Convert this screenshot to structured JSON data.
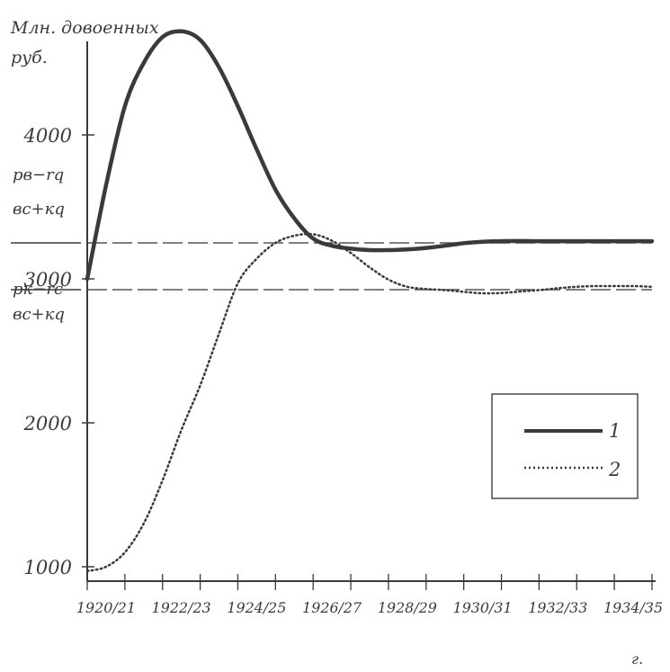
{
  "chart_data": {
    "type": "line",
    "ylabel_line1": "Млн. довоенных",
    "ylabel_line2": "руб.",
    "x_unit": "г.",
    "ylim": [
      900,
      4750
    ],
    "y_ticks": [
      {
        "value": 1000,
        "label": "1000"
      },
      {
        "value": 2000,
        "label": "2000"
      },
      {
        "value": 3000,
        "label": "3000"
      },
      {
        "value": 4000,
        "label": "4000"
      }
    ],
    "x_ticks": [
      "1920/21",
      "1922/23",
      "1924/25",
      "1926/27",
      "1928/29",
      "1930/31",
      "1932/33",
      "1934/35"
    ],
    "x_minor_ticks": [
      1920,
      1921,
      1922,
      1923,
      1924,
      1925,
      1926,
      1927,
      1928,
      1929,
      1930,
      1931,
      1932,
      1933,
      1934,
      1935
    ],
    "reference_lines": [
      {
        "value": 3250,
        "numerator": "pв−rq",
        "denominator": "вc+кq"
      },
      {
        "value": 2925,
        "numerator": "pк−rc",
        "denominator": "вc+кq"
      }
    ],
    "series": [
      {
        "name": "1",
        "style": "solid",
        "color": "#3a3a3a",
        "x": [
          1920,
          1920.5,
          1921,
          1921.5,
          1922,
          1922.5,
          1923,
          1923.5,
          1924,
          1924.5,
          1925,
          1925.5,
          1926,
          1926.5,
          1927,
          1927.5,
          1928,
          1928.5,
          1929,
          1929.5,
          1930,
          1930.5,
          1931,
          1931.5,
          1932,
          1932.5,
          1933,
          1933.5,
          1934,
          1934.5,
          1935
        ],
        "values": [
          3000,
          3650,
          4200,
          4500,
          4680,
          4720,
          4660,
          4470,
          4200,
          3900,
          3620,
          3420,
          3280,
          3230,
          3210,
          3200,
          3200,
          3205,
          3215,
          3230,
          3248,
          3258,
          3262,
          3263,
          3262,
          3262,
          3262,
          3262,
          3262,
          3262,
          3262
        ]
      },
      {
        "name": "2",
        "style": "dotted",
        "color": "#3a3a3a",
        "x": [
          1920,
          1920.5,
          1921,
          1921.5,
          1922,
          1922.5,
          1923,
          1923.5,
          1924,
          1924.5,
          1925,
          1925.5,
          1926,
          1926.5,
          1927,
          1927.5,
          1928,
          1928.5,
          1929,
          1929.5,
          1930,
          1930.5,
          1931,
          1931.5,
          1932,
          1932.5,
          1933,
          1933.5,
          1934,
          1934.5,
          1935
        ],
        "values": [
          970,
          1000,
          1100,
          1300,
          1600,
          1950,
          2260,
          2620,
          2970,
          3140,
          3250,
          3300,
          3310,
          3265,
          3180,
          3080,
          2995,
          2945,
          2930,
          2922,
          2910,
          2900,
          2902,
          2912,
          2922,
          2935,
          2945,
          2950,
          2950,
          2950,
          2945
        ]
      }
    ],
    "legend": [
      {
        "label": "1",
        "style": "solid"
      },
      {
        "label": "2",
        "style": "dotted"
      }
    ]
  }
}
